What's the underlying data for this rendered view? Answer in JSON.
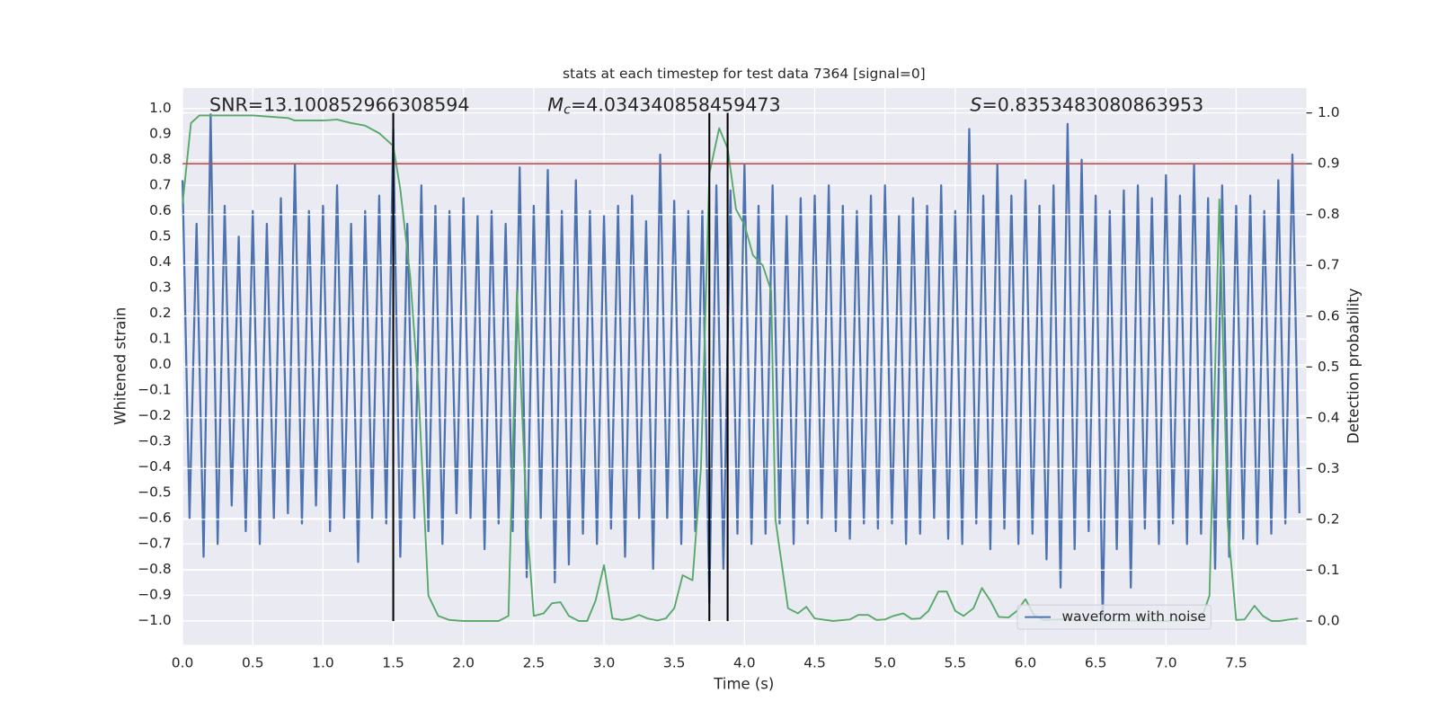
{
  "chart_data": {
    "type": "line",
    "title": "stats at each timestep for test data 7364 [signal=0]",
    "xlabel": "Time (s)",
    "ylabel": "Whitened strain",
    "y2label": "Detection probability",
    "xlim": [
      0,
      8.0
    ],
    "ylim": [
      -1.094,
      1.08
    ],
    "y2lim": [
      -0.047,
      1.049
    ],
    "grid": true,
    "legend": "lower right",
    "xticks": [
      {
        "value": 0,
        "label": "0.0"
      },
      {
        "value": 0.5,
        "label": "0.5"
      },
      {
        "value": 1,
        "label": "1.0"
      },
      {
        "value": 1.5,
        "label": "1.5"
      },
      {
        "value": 2,
        "label": "2.0"
      },
      {
        "value": 2.5,
        "label": "2.5"
      },
      {
        "value": 3,
        "label": "3.0"
      },
      {
        "value": 3.5,
        "label": "3.5"
      },
      {
        "value": 4,
        "label": "4.0"
      },
      {
        "value": 4.5,
        "label": "4.5"
      },
      {
        "value": 5,
        "label": "5.0"
      },
      {
        "value": 5.5,
        "label": "5.5"
      },
      {
        "value": 6,
        "label": "6.0"
      },
      {
        "value": 6.5,
        "label": "6.5"
      },
      {
        "value": 7,
        "label": "7.0"
      },
      {
        "value": 7.5,
        "label": "7.5"
      }
    ],
    "yticks": [
      {
        "value": -1,
        "label": "−1.0"
      },
      {
        "value": -0.9,
        "label": "−0.9"
      },
      {
        "value": -0.8,
        "label": "−0.8"
      },
      {
        "value": -0.7,
        "label": "−0.7"
      },
      {
        "value": -0.6,
        "label": "−0.6"
      },
      {
        "value": -0.5,
        "label": "−0.5"
      },
      {
        "value": -0.4,
        "label": "−0.4"
      },
      {
        "value": -0.3,
        "label": "−0.3"
      },
      {
        "value": -0.2,
        "label": "−0.2"
      },
      {
        "value": -0.1,
        "label": "−0.1"
      },
      {
        "value": 0,
        "label": "0.0"
      },
      {
        "value": 0.1,
        "label": "0.1"
      },
      {
        "value": 0.2,
        "label": "0.2"
      },
      {
        "value": 0.3,
        "label": "0.3"
      },
      {
        "value": 0.4,
        "label": "0.4"
      },
      {
        "value": 0.5,
        "label": "0.5"
      },
      {
        "value": 0.6,
        "label": "0.6"
      },
      {
        "value": 0.7,
        "label": "0.7"
      },
      {
        "value": 0.8,
        "label": "0.8"
      },
      {
        "value": 0.9,
        "label": "0.9"
      },
      {
        "value": 1,
        "label": "1.0"
      }
    ],
    "y2ticks": [
      {
        "value": 0,
        "label": "0.0"
      },
      {
        "value": 0.1,
        "label": "0.1"
      },
      {
        "value": 0.2,
        "label": "0.2"
      },
      {
        "value": 0.3,
        "label": "0.3"
      },
      {
        "value": 0.4,
        "label": "0.4"
      },
      {
        "value": 0.5,
        "label": "0.5"
      },
      {
        "value": 0.6,
        "label": "0.6"
      },
      {
        "value": 0.7,
        "label": "0.7"
      },
      {
        "value": 0.8,
        "label": "0.8"
      },
      {
        "value": 0.9,
        "label": "0.9"
      },
      {
        "value": 1,
        "label": "1.0"
      }
    ],
    "series": [
      {
        "name": "waveform with noise",
        "color": "#4c72b0",
        "x": [
          0,
          0.05,
          0.1,
          0.15,
          0.2,
          0.25,
          0.3,
          0.35,
          0.4,
          0.45,
          0.5,
          0.55,
          0.6,
          0.65,
          0.7,
          0.75,
          0.8,
          0.85,
          0.9,
          0.95,
          1,
          1.05,
          1.1,
          1.15,
          1.2,
          1.25,
          1.3,
          1.35,
          1.4,
          1.45,
          1.5,
          1.55,
          1.6,
          1.65,
          1.7,
          1.75,
          1.8,
          1.85,
          1.9,
          1.95,
          2,
          2.05,
          2.1,
          2.15,
          2.2,
          2.25,
          2.3,
          2.35,
          2.4,
          2.45,
          2.5,
          2.55,
          2.6,
          2.65,
          2.7,
          2.75,
          2.8,
          2.85,
          2.9,
          2.95,
          3,
          3.05,
          3.1,
          3.15,
          3.2,
          3.25,
          3.3,
          3.35,
          3.4,
          3.45,
          3.5,
          3.55,
          3.6,
          3.65,
          3.7,
          3.75,
          3.8,
          3.85,
          3.9,
          3.95,
          4,
          4.05,
          4.1,
          4.15,
          4.2,
          4.25,
          4.3,
          4.35,
          4.4,
          4.45,
          4.5,
          4.55,
          4.6,
          4.65,
          4.7,
          4.75,
          4.8,
          4.85,
          4.9,
          4.95,
          5,
          5.05,
          5.1,
          5.15,
          5.2,
          5.25,
          5.3,
          5.35,
          5.4,
          5.45,
          5.5,
          5.55,
          5.6,
          5.65,
          5.7,
          5.75,
          5.8,
          5.85,
          5.9,
          5.95,
          6,
          6.05,
          6.1,
          6.15,
          6.2,
          6.25,
          6.3,
          6.35,
          6.4,
          6.45,
          6.5,
          6.55,
          6.6,
          6.65,
          6.7,
          6.75,
          6.8,
          6.85,
          6.9,
          6.95,
          7,
          7.05,
          7.1,
          7.15,
          7.2,
          7.25,
          7.3,
          7.35,
          7.4,
          7.45,
          7.5,
          7.55,
          7.6,
          7.65,
          7.7,
          7.75,
          7.8,
          7.85,
          7.9,
          7.95
        ],
        "values": [
          0.72,
          -0.6,
          0.55,
          -0.75,
          0.98,
          -0.7,
          0.62,
          -0.55,
          0.5,
          -0.65,
          0.6,
          -0.7,
          0.55,
          -0.6,
          0.65,
          -0.58,
          0.78,
          -0.62,
          0.6,
          -0.55,
          0.62,
          -0.65,
          0.7,
          -0.6,
          0.55,
          -0.77,
          0.6,
          -0.6,
          0.66,
          -0.62,
          0.92,
          -0.75,
          0.55,
          -0.6,
          0.7,
          -0.65,
          0.62,
          -0.7,
          0.6,
          -0.58,
          0.65,
          -0.6,
          0.58,
          -0.72,
          0.6,
          -0.62,
          0.55,
          -0.65,
          0.77,
          -0.83,
          0.62,
          -0.6,
          0.76,
          -0.85,
          0.6,
          -0.78,
          0.72,
          -0.66,
          0.6,
          -0.7,
          0.58,
          -0.64,
          0.62,
          -0.75,
          0.66,
          -0.6,
          0.56,
          -0.8,
          0.82,
          -0.6,
          0.64,
          -0.7,
          0.6,
          -0.65,
          0.6,
          -0.93,
          0.7,
          -0.8,
          0.68,
          -0.66,
          0.78,
          -0.7,
          0.62,
          -0.66,
          0.7,
          -0.62,
          0.58,
          -0.7,
          0.65,
          -0.62,
          0.66,
          -0.6,
          0.7,
          -0.65,
          0.62,
          -0.68,
          0.6,
          -0.62,
          0.66,
          -0.64,
          0.7,
          -0.62,
          0.58,
          -0.7,
          0.65,
          -0.66,
          0.62,
          -0.6,
          0.7,
          -0.68,
          0.6,
          -0.7,
          0.92,
          -0.62,
          0.66,
          -0.72,
          0.78,
          -0.64,
          0.66,
          -0.7,
          0.72,
          -0.66,
          0.62,
          -0.76,
          0.7,
          -0.87,
          0.94,
          -0.72,
          0.8,
          -0.65,
          0.66,
          -1.0,
          0.6,
          -0.72,
          0.68,
          -0.87,
          0.7,
          -0.64,
          0.65,
          -0.7,
          0.74,
          -0.62,
          0.66,
          -0.7,
          0.78,
          -0.66,
          0.65,
          -0.8,
          0.7,
          -0.75,
          0.62,
          -0.68,
          0.66,
          -0.7,
          0.6,
          -0.66,
          0.72,
          -0.62,
          0.82,
          -0.58
        ]
      },
      {
        "color": "#55a868",
        "axis": "y2",
        "x": [
          0,
          0.06,
          0.12,
          0.25,
          0.5,
          0.75,
          0.8,
          1,
          1.1,
          1.2,
          1.3,
          1.4,
          1.5,
          1.55,
          1.62,
          1.68,
          1.75,
          1.82,
          1.9,
          2,
          2.25,
          2.32,
          2.38,
          2.45,
          2.5,
          2.57,
          2.63,
          2.69,
          2.75,
          2.82,
          2.88,
          2.94,
          3,
          3.06,
          3.13,
          3.19,
          3.25,
          3.31,
          3.38,
          3.44,
          3.5,
          3.56,
          3.63,
          3.69,
          3.75,
          3.82,
          3.88,
          3.94,
          4,
          4.06,
          4.13,
          4.19,
          4.22,
          4.31,
          4.38,
          4.44,
          4.5,
          4.63,
          4.75,
          4.81,
          4.88,
          4.94,
          5,
          5.06,
          5.13,
          5.19,
          5.25,
          5.31,
          5.38,
          5.44,
          5.5,
          5.56,
          5.63,
          5.69,
          5.75,
          5.81,
          5.88,
          5.94,
          6,
          6.06,
          6.13,
          6.25,
          6.5,
          7,
          7.25,
          7.31,
          7.38,
          7.44,
          7.5,
          7.56,
          7.63,
          7.69,
          7.75,
          7.81,
          7.88,
          7.94
        ],
        "values": [
          0.82,
          0.98,
          0.995,
          0.995,
          0.995,
          0.99,
          0.985,
          0.985,
          0.987,
          0.98,
          0.975,
          0.96,
          0.935,
          0.85,
          0.68,
          0.45,
          0.05,
          0.01,
          0.002,
          0,
          0,
          0.01,
          0.65,
          0.2,
          0.01,
          0.015,
          0.035,
          0.037,
          0.01,
          0,
          0,
          0.04,
          0.11,
          0.005,
          0.002,
          0.005,
          0.012,
          0.005,
          0.001,
          0.005,
          0.025,
          0.09,
          0.08,
          0.3,
          0.88,
          0.97,
          0.93,
          0.81,
          0.78,
          0.72,
          0.7,
          0.65,
          0.2,
          0.025,
          0.015,
          0.028,
          0.005,
          0,
          0.003,
          0.012,
          0.012,
          0.002,
          0.003,
          0.01,
          0.015,
          0.004,
          0.005,
          0.02,
          0.058,
          0.058,
          0.02,
          0.01,
          0.025,
          0.065,
          0.04,
          0.008,
          0.007,
          0.02,
          0.043,
          0.012,
          0.002,
          0.003,
          0.001,
          0,
          0.003,
          0.05,
          0.83,
          0.19,
          0.002,
          0.003,
          0.03,
          0.01,
          0,
          0,
          0.003,
          0.005
        ]
      }
    ],
    "threshold": {
      "value": 0.9,
      "axis": "y2",
      "color": "#c44e52"
    },
    "vlines": {
      "x": [
        1.5,
        3.75,
        3.88
      ],
      "ymin": 0,
      "ymax": 1,
      "axis": "y2",
      "color": "#000000"
    },
    "annotations": [
      {
        "text": "SNR=13.100852966308594"
      },
      {
        "symbol": "M",
        "subscript": "c",
        "text": "=4.034340858459473"
      },
      {
        "symbol": "S",
        "text": "=0.8353483080863953"
      }
    ]
  }
}
